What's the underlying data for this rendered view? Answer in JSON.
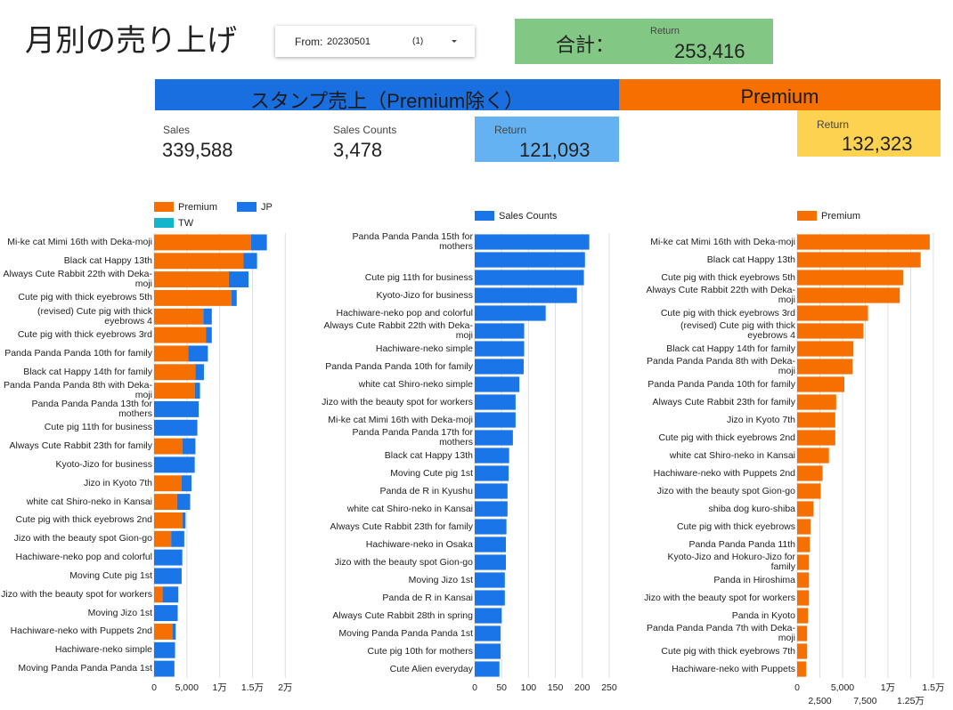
{
  "header": {
    "title": "月別の売り上げ",
    "date_filter": {
      "label": "From:",
      "value": "20230501",
      "count": "(1)"
    },
    "total": {
      "label": "合計：",
      "metric": "Return",
      "value": "253,416"
    }
  },
  "sections": [
    {
      "title": "スタンプ売上（Premium除く）"
    },
    {
      "title": "Premium"
    }
  ],
  "scorecards": [
    {
      "label": "Sales",
      "value": "339,588"
    },
    {
      "label": "Sales Counts",
      "value": "3,478"
    },
    {
      "label": "Return",
      "value": "121,093"
    },
    {
      "label": "Return",
      "value": "132,323"
    }
  ],
  "chart_data": [
    {
      "type": "bar",
      "orientation": "horizontal",
      "stacked": true,
      "grid": true,
      "categories": [
        "Mi-ke cat Mimi 16th with Deka-moji",
        "Black cat Happy 13th",
        "Always Cute Rabbit 22th with Deka-moji",
        "Cute pig with thick eyebrows 5th",
        "(revised) Cute pig with thick eyebrows 4",
        "Cute pig with thick eyebrows 3rd",
        "Panda Panda Panda 10th for family",
        "Black cat Happy 14th for family",
        "Panda Panda Panda 8th with Deka-moji",
        "Panda Panda Panda 13th for mothers",
        "Cute pig 11th for business",
        "Always Cute Rabbit 23th for family",
        "Kyoto-Jizo for business",
        "Jizo in Kyoto 7th",
        "white cat Shiro-neko in Kansai",
        "Cute pig with thick eyebrows 2nd",
        "Jizo with the beauty spot Gion-go",
        "Hachiware-neko pop and colorful",
        "Moving Cute pig 1st",
        "Jizo with the beauty spot for workers",
        "Moving Jizo 1st",
        "Hachiware-neko with Puppets 2nd",
        "Hachiware-neko simple",
        "Moving Panda Panda Panda 1st"
      ],
      "series": [
        {
          "name": "Premium",
          "color": "#f57000",
          "values": [
            14800,
            13600,
            11400,
            11800,
            7500,
            7900,
            5200,
            6300,
            6200,
            0,
            0,
            4300,
            0,
            4200,
            3500,
            4300,
            2600,
            0,
            0,
            1300,
            0,
            2800,
            0,
            0
          ]
        },
        {
          "name": "JP",
          "color": "#1a76e8",
          "values": [
            2400,
            2100,
            3000,
            800,
            1300,
            900,
            3000,
            1300,
            800,
            6800,
            6600,
            2000,
            6200,
            1500,
            2000,
            500,
            2000,
            4300,
            4200,
            2400,
            3600,
            500,
            3200,
            3100
          ]
        },
        {
          "name": "TW",
          "color": "#12b5cb",
          "values": [
            0,
            0,
            0,
            0,
            0,
            0,
            0,
            0,
            0,
            0,
            0,
            0,
            0,
            0,
            0,
            0,
            0,
            0,
            0,
            0,
            0,
            0,
            0,
            0
          ]
        }
      ],
      "xlim": [
        0,
        22000
      ],
      "xticks": [
        0,
        {
          "value": 5000,
          "label": "5,000"
        },
        {
          "value": 10000,
          "label": "1万"
        },
        {
          "value": 15000,
          "label": "1.5万"
        },
        {
          "value": 20000,
          "label": "2万"
        }
      ]
    },
    {
      "type": "bar",
      "orientation": "horizontal",
      "stacked": false,
      "grid": true,
      "categories": [
        "Panda Panda Panda 15th for mothers",
        null,
        "Cute pig 11th for business",
        "Kyoto-Jizo for business",
        "Hachiware-neko pop and colorful",
        "Always Cute Rabbit 22th with Deka-moji",
        "Hachiware-neko simple",
        "Panda Panda Panda 10th for family",
        "white cat Shiro-neko simple",
        "Jizo with the beauty spot for workers",
        "Mi-ke cat Mimi 16th with Deka-moji",
        "Panda Panda Panda 17th for mothers",
        "Black cat Happy 13th",
        "Moving Cute pig 1st",
        "Panda de R in Kyushu",
        "white cat Shiro-neko in Kansai",
        "Always Cute Rabbit 23th for family",
        "Hachiware-neko in Osaka",
        "Jizo with the beauty spot Gion-go",
        "Moving Jizo 1st",
        "Panda de R in Kansai",
        "Always Cute Rabbit 28th in spring",
        "Moving Panda Panda Panda 1st",
        "Cute pig 10th for mothers",
        "Cute Alien everyday"
      ],
      "series": [
        {
          "name": "Sales Counts",
          "color": "#1a76e8",
          "values": [
            213,
            205,
            203,
            190,
            132,
            92,
            92,
            91,
            83,
            76,
            76,
            71,
            64,
            63,
            61,
            61,
            59,
            58,
            58,
            56,
            56,
            50,
            48,
            48,
            46
          ]
        }
      ],
      "xlim": [
        0,
        260
      ],
      "xticks": [
        0,
        50,
        100,
        150,
        200,
        250
      ]
    },
    {
      "type": "bar",
      "orientation": "horizontal",
      "stacked": false,
      "grid": true,
      "categories": [
        "Mi-ke cat Mimi 16th with Deka-moji",
        "Black cat Happy 13th",
        "Cute pig with thick eyebrows 5th",
        "Always Cute Rabbit 22th with Deka-moji",
        "Cute pig with thick eyebrows 3rd",
        "(revised) Cute pig with thick eyebrows 4",
        "Black cat Happy 14th for family",
        "Panda Panda Panda 8th with Deka-moji",
        "Panda Panda Panda 10th for family",
        "Always Cute Rabbit 23th for family",
        "Jizo in Kyoto 7th",
        "Cute pig with thick eyebrows 2nd",
        "white cat Shiro-neko in Kansai",
        "Hachiware-neko with Puppets 2nd",
        "Jizo with the beauty spot Gion-go",
        "shiba dog kuro-shiba",
        "Cute pig with thick eyebrows",
        "Panda Panda Panda 11th",
        "Kyoto-Jizo and Hokuro-Jizo for family",
        "Panda in Hiroshima",
        "Jizo with the beauty spot for workers",
        "Panda in Kyoto",
        "Panda Panda Panda 7th with Deka-moji",
        "Cute pig with thick eyebrows 7th",
        "Hachiware-neko with Puppets"
      ],
      "series": [
        {
          "name": "Premium",
          "color": "#f57000",
          "values": [
            14600,
            13600,
            11700,
            11300,
            7800,
            7300,
            6200,
            6100,
            5200,
            4300,
            4200,
            4200,
            3500,
            2800,
            2600,
            1800,
            1500,
            1400,
            1300,
            1300,
            1300,
            1200,
            1100,
            1100,
            1000
          ]
        }
      ],
      "xlim": [
        0,
        15200
      ],
      "xticks": [
        0,
        {
          "value": 2500,
          "label": "2,500"
        },
        {
          "value": 5000,
          "label": "5,000"
        },
        {
          "value": 7500,
          "label": "7,500"
        },
        {
          "value": 10000,
          "label": "1万"
        },
        {
          "value": 12500,
          "label": "1.25万"
        },
        {
          "value": 15000,
          "label": "1.5万"
        }
      ]
    }
  ]
}
